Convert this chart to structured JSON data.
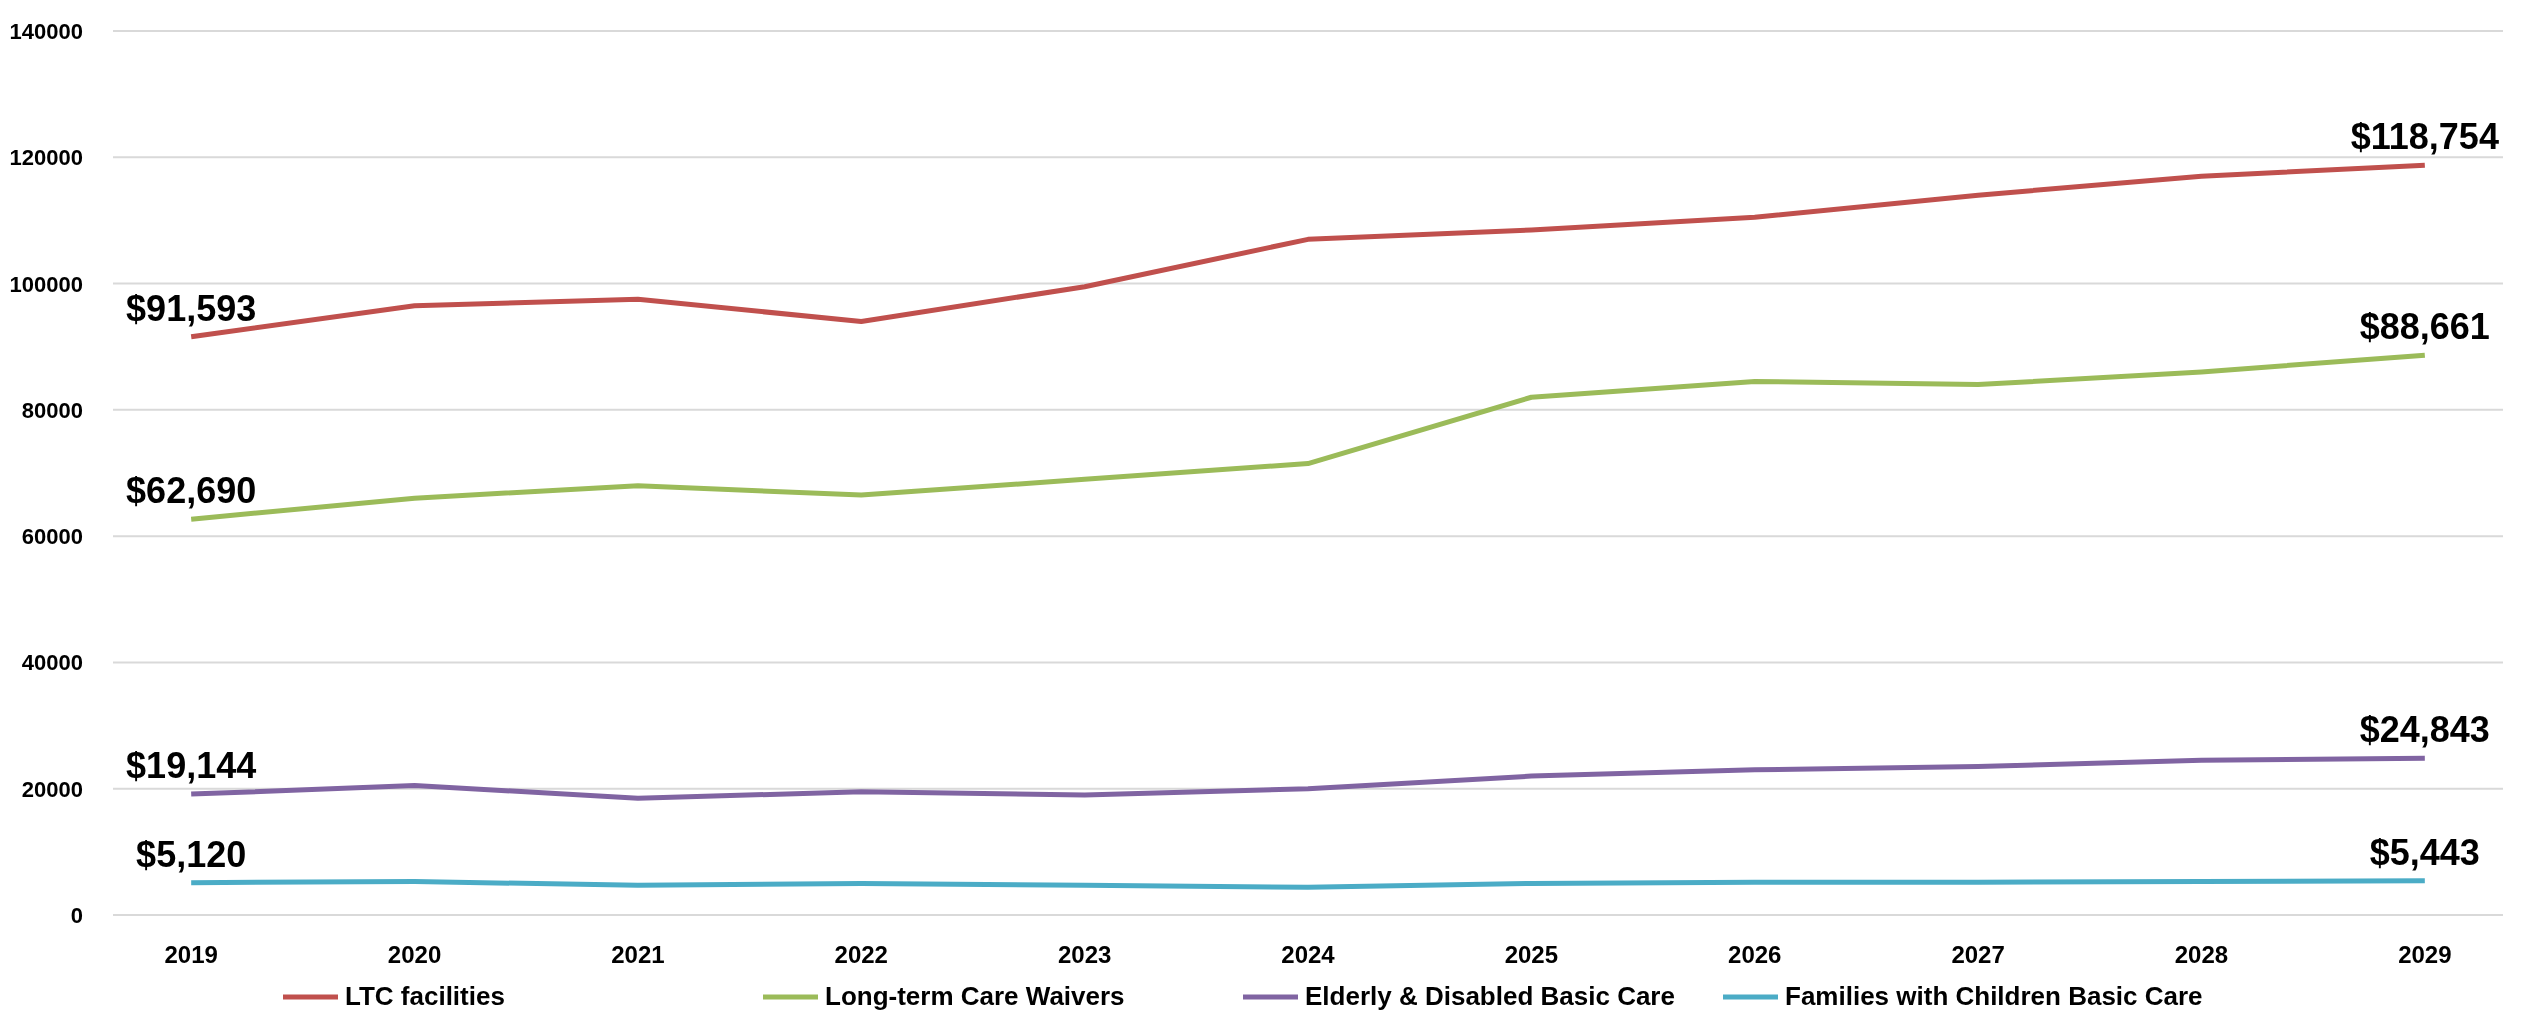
{
  "chart_data": {
    "type": "line",
    "categories": [
      "2019",
      "2020",
      "2021",
      "2022",
      "2023",
      "2024",
      "2025",
      "2026",
      "2027",
      "2028",
      "2029"
    ],
    "series": [
      {
        "name": "LTC facilities",
        "color": "#c0504d",
        "values": [
          91593,
          96500,
          97500,
          94000,
          99500,
          107000,
          108500,
          110500,
          114000,
          117000,
          118754
        ],
        "value_labels": [
          "$91,593",
          null,
          null,
          null,
          null,
          null,
          null,
          null,
          null,
          null,
          "$118,754"
        ]
      },
      {
        "name": "Long-term Care Waivers",
        "color": "#9bbb59",
        "values": [
          62690,
          66000,
          68000,
          66500,
          69000,
          71500,
          82000,
          84500,
          84000,
          86000,
          88661
        ],
        "value_labels": [
          "$62,690",
          null,
          null,
          null,
          null,
          null,
          null,
          null,
          null,
          null,
          "$88,661"
        ]
      },
      {
        "name": "Elderly & Disabled Basic Care",
        "color": "#8064a2",
        "values": [
          19144,
          20500,
          18500,
          19500,
          19000,
          20000,
          22000,
          23000,
          23500,
          24500,
          24843
        ],
        "value_labels": [
          "$19,144",
          null,
          null,
          null,
          null,
          null,
          null,
          null,
          null,
          null,
          "$24,843"
        ]
      },
      {
        "name": "Families with Children Basic Care",
        "color": "#4bacc6",
        "values": [
          5120,
          5300,
          4700,
          5000,
          4700,
          4400,
          5000,
          5200,
          5200,
          5300,
          5443
        ],
        "value_labels": [
          "$5,120",
          null,
          null,
          null,
          null,
          null,
          null,
          null,
          null,
          null,
          "$5,443"
        ]
      }
    ],
    "ylim": [
      0,
      140000
    ],
    "yticks": [
      0,
      20000,
      40000,
      60000,
      80000,
      100000,
      120000,
      140000
    ],
    "grid": "y",
    "legend": "bottom",
    "marker": "none",
    "line_style": "solid"
  }
}
